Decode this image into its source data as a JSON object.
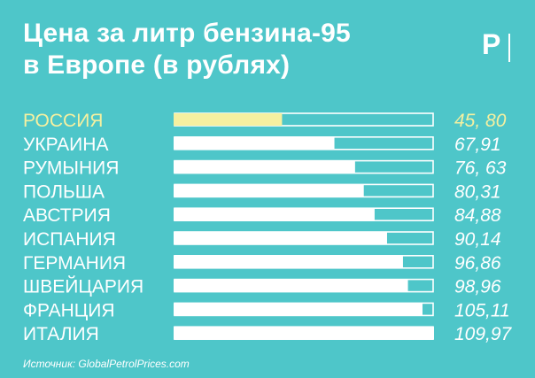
{
  "title": {
    "line1": "Цена за литр бензина-95",
    "line2": "в Европе (в рублях)"
  },
  "logo": {
    "letter": "Р"
  },
  "source": "Источник: GlobalPetrolPrices.com",
  "colors": {
    "background": "#4ec6c9",
    "bar": "#ffffff",
    "highlight": "#f5f0a0",
    "text": "#ffffff"
  },
  "chart_data": {
    "type": "bar",
    "orientation": "horizontal",
    "categories": [
      "РОССИЯ",
      "УКРАИНА",
      "РУМЫНИЯ",
      "ПОЛЬША",
      "АВСТРИЯ",
      "ИСПАНИЯ",
      "ГЕРМАНИЯ",
      "ШВЕЙЦАРИЯ",
      "ФРАНЦИЯ",
      "ИТАЛИЯ"
    ],
    "values": [
      45.8,
      67.91,
      76.63,
      80.31,
      84.88,
      90.14,
      96.86,
      98.96,
      105.11,
      109.97
    ],
    "value_labels": [
      "45, 80",
      "67,91",
      "76, 63",
      "80,31",
      "84,88",
      "90,14",
      "96,86",
      "98,96",
      "105,11",
      "109,97"
    ],
    "highlight_index": 0,
    "xlim": [
      0,
      109.97
    ],
    "grid": false,
    "legend": "none"
  }
}
